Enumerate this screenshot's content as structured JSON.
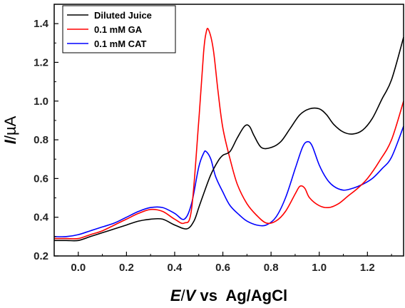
{
  "chart_data": {
    "type": "line",
    "xlabel": "E / V vs  Ag/AgCl",
    "xlabel_parts": {
      "e": "E",
      "sep": "/",
      "v": "V",
      "rest": " vs  Ag/AgCl"
    },
    "ylabel": "I / µA",
    "ylabel_parts": {
      "i": "I",
      "sep": "/",
      "unit": "µA"
    },
    "xlim": [
      -0.1,
      1.35
    ],
    "ylim": [
      0.2,
      1.5
    ],
    "xticks": [
      "0.0",
      "0.2",
      "0.4",
      "0.6",
      "0.8",
      "1.0",
      "1.2"
    ],
    "xtick_values": [
      0.0,
      0.2,
      0.4,
      0.6,
      0.8,
      1.0,
      1.2
    ],
    "yticks": [
      "0.2",
      "0.4",
      "0.6",
      "0.8",
      "1.0",
      "1.2",
      "1.4"
    ],
    "ytick_values": [
      0.2,
      0.4,
      0.6,
      0.8,
      1.0,
      1.2,
      1.4
    ],
    "grid": false,
    "legend": "top-left",
    "series": [
      {
        "name": "Diluted Juice",
        "color": "#000000",
        "x": [
          -0.1,
          -0.05,
          0.0,
          0.05,
          0.1,
          0.15,
          0.2,
          0.25,
          0.3,
          0.35,
          0.4,
          0.45,
          0.48,
          0.5,
          0.52,
          0.55,
          0.58,
          0.6,
          0.63,
          0.66,
          0.69,
          0.71,
          0.73,
          0.76,
          0.8,
          0.84,
          0.88,
          0.92,
          0.96,
          1.0,
          1.03,
          1.06,
          1.1,
          1.14,
          1.18,
          1.22,
          1.26,
          1.3,
          1.35
        ],
        "y": [
          0.28,
          0.28,
          0.28,
          0.3,
          0.32,
          0.34,
          0.36,
          0.38,
          0.39,
          0.39,
          0.36,
          0.34,
          0.38,
          0.45,
          0.52,
          0.62,
          0.69,
          0.72,
          0.74,
          0.81,
          0.87,
          0.87,
          0.82,
          0.76,
          0.76,
          0.79,
          0.86,
          0.93,
          0.96,
          0.96,
          0.93,
          0.88,
          0.84,
          0.83,
          0.85,
          0.91,
          1.01,
          1.11,
          1.33
        ]
      },
      {
        "name": "0.1 mM GA",
        "color": "#ff0000",
        "x": [
          -0.1,
          -0.05,
          0.0,
          0.05,
          0.1,
          0.15,
          0.2,
          0.25,
          0.3,
          0.35,
          0.4,
          0.44,
          0.47,
          0.5,
          0.52,
          0.53,
          0.54,
          0.56,
          0.58,
          0.6,
          0.63,
          0.66,
          0.7,
          0.74,
          0.78,
          0.82,
          0.86,
          0.9,
          0.92,
          0.94,
          0.96,
          1.0,
          1.04,
          1.08,
          1.12,
          1.16,
          1.2,
          1.25,
          1.3,
          1.35
        ],
        "y": [
          0.29,
          0.29,
          0.29,
          0.31,
          0.33,
          0.36,
          0.39,
          0.42,
          0.44,
          0.43,
          0.39,
          0.37,
          0.44,
          0.9,
          1.25,
          1.35,
          1.37,
          1.27,
          1.05,
          0.86,
          0.7,
          0.57,
          0.47,
          0.41,
          0.37,
          0.38,
          0.43,
          0.52,
          0.56,
          0.55,
          0.5,
          0.46,
          0.45,
          0.47,
          0.51,
          0.55,
          0.6,
          0.69,
          0.8,
          1.0
        ]
      },
      {
        "name": "0.1 mM CAT",
        "color": "#0000ff",
        "x": [
          -0.1,
          -0.05,
          0.0,
          0.05,
          0.1,
          0.15,
          0.2,
          0.25,
          0.3,
          0.35,
          0.4,
          0.44,
          0.47,
          0.5,
          0.52,
          0.53,
          0.55,
          0.57,
          0.6,
          0.63,
          0.67,
          0.7,
          0.74,
          0.78,
          0.82,
          0.86,
          0.9,
          0.93,
          0.95,
          0.97,
          1.0,
          1.03,
          1.06,
          1.1,
          1.14,
          1.18,
          1.22,
          1.26,
          1.3,
          1.35
        ],
        "y": [
          0.3,
          0.3,
          0.31,
          0.33,
          0.35,
          0.37,
          0.4,
          0.43,
          0.45,
          0.45,
          0.42,
          0.39,
          0.47,
          0.66,
          0.73,
          0.74,
          0.7,
          0.61,
          0.53,
          0.46,
          0.41,
          0.38,
          0.36,
          0.36,
          0.4,
          0.5,
          0.65,
          0.76,
          0.79,
          0.77,
          0.67,
          0.6,
          0.56,
          0.54,
          0.55,
          0.57,
          0.6,
          0.65,
          0.71,
          0.87
        ]
      }
    ]
  }
}
